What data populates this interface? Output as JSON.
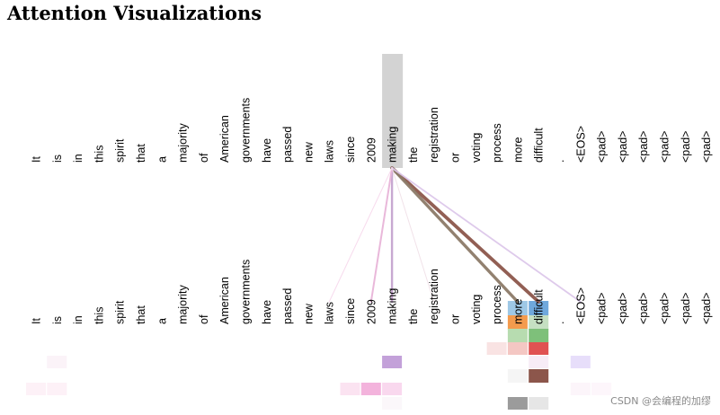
{
  "title": "Attention Visualizations",
  "tokens": [
    "It",
    "is",
    "in",
    "this",
    "spirit",
    "that",
    "a",
    "majority",
    "of",
    "American",
    "governments",
    "have",
    "passed",
    "new",
    "laws",
    "since",
    "2009",
    "making",
    "the",
    "registration",
    "or",
    "voting",
    "process",
    "more",
    "difficult",
    ".",
    "<EOS>",
    "<pad>",
    "<pad>",
    "<pad>",
    "<pad>",
    "<pad>",
    "<pad>"
  ],
  "query_token": "making",
  "attention_links": [
    {
      "target": "difficult",
      "color": "#8c564b",
      "weight": 0.95
    },
    {
      "target": "more",
      "color": "#8c7a68",
      "weight": 0.85
    },
    {
      "target": "making",
      "color": "#c5a3cf",
      "weight": 0.6
    },
    {
      "target": "2009",
      "color": "#e8b4d8",
      "weight": 0.5
    },
    {
      "target": "<EOS>",
      "color": "#dcc7ea",
      "weight": 0.45
    },
    {
      "target": "laws",
      "color": "#f7d8ec",
      "weight": 0.25
    },
    {
      "target": "registration",
      "color": "#f0e0e8",
      "weight": 0.15
    }
  ],
  "watermark": "CSDN @会编程的加缪"
}
